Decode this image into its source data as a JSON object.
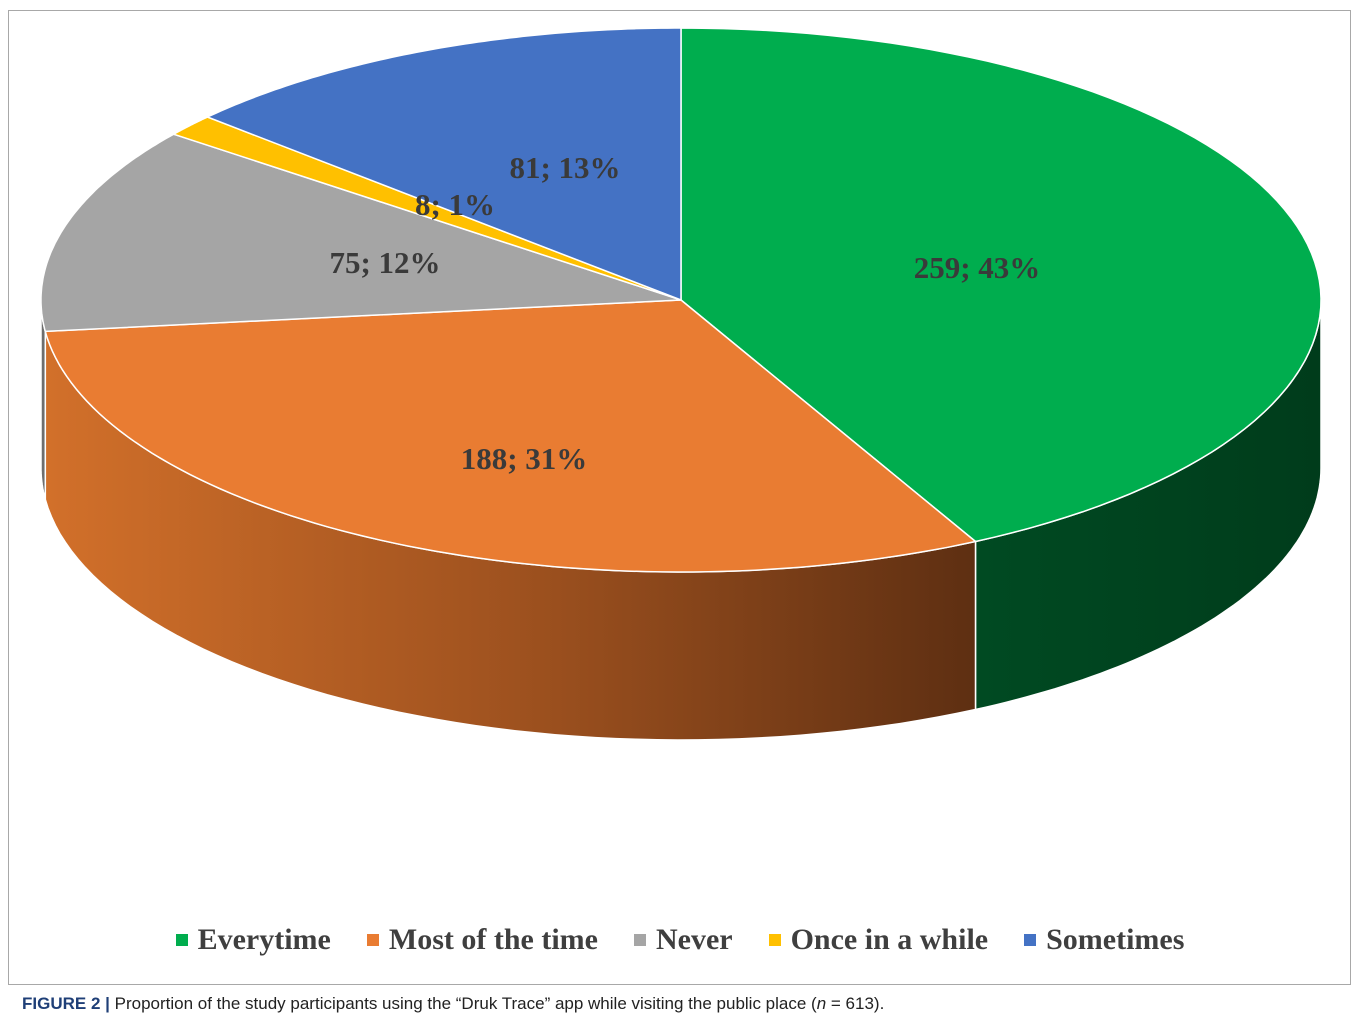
{
  "chart_data": {
    "type": "pie",
    "style": "3d",
    "slices": [
      {
        "label": "Everytime",
        "value": 259,
        "percent": "43%",
        "data_label": "259; 43%",
        "color": "#00AD4E",
        "side_color": "#004F24"
      },
      {
        "label": "Most of the time",
        "value": 188,
        "percent": "31%",
        "data_label": "188; 31%",
        "color": "#E97C32",
        "side_color": "#B0591C"
      },
      {
        "label": "Never",
        "value": 75,
        "percent": "12%",
        "data_label": "75; 12%",
        "color": "#A5A5A5",
        "side_color": "#6E6E6E"
      },
      {
        "label": "Once in a while",
        "value": 8,
        "percent": "1%",
        "data_label": "8; 1%",
        "color": "#FFC000",
        "side_color": "#B38600"
      },
      {
        "label": "Sometimes",
        "value": 81,
        "percent": "13%",
        "data_label": "81; 13%",
        "color": "#4472C4",
        "side_color": "#2E4F88"
      }
    ],
    "legend_position": "bottom"
  },
  "caption": {
    "figure_label": "FIGURE 2 |",
    "text_before": "Proportion of the study participants using the “Druk Trace” app while visiting the public place (",
    "n_symbol": "n",
    "text_after": " = 613)."
  }
}
